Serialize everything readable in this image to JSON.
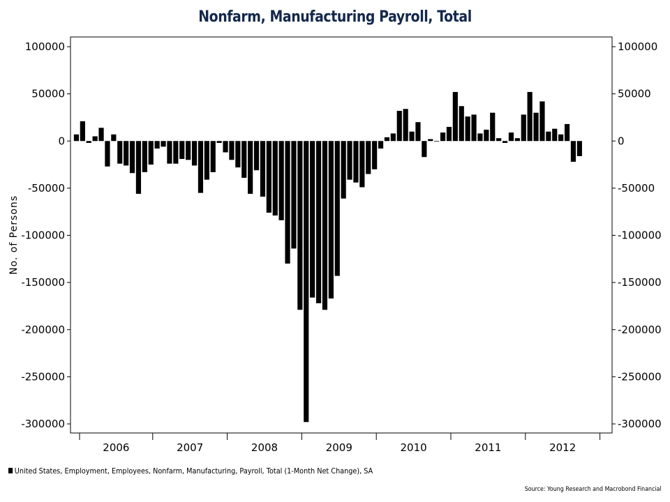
{
  "chart_data": {
    "type": "bar",
    "title": "Nonfarm, Manufacturing Payroll, Total",
    "ylabel": "No. of Persons",
    "xlabel": "",
    "ylim": [
      -310000,
      110000
    ],
    "yticks": [
      100000,
      50000,
      0,
      -50000,
      -100000,
      -150000,
      -200000,
      -250000,
      -300000
    ],
    "ytick_labels": [
      "100000",
      "50000",
      "0",
      "-50000",
      "-100000",
      "-150000",
      "-200000",
      "-250000",
      "-300000"
    ],
    "year_labels": [
      "2006",
      "2007",
      "2008",
      "2009",
      "2010",
      "2011",
      "2012"
    ],
    "x_start": "2006-01",
    "grid": false,
    "bar_color": "#000000",
    "series": [
      {
        "name": "United States, Employment, Employees, Nonfarm, Manufacturing, Payroll, Total (1-Month Net Change), SA",
        "values": [
          7000,
          21000,
          -2000,
          5000,
          14000,
          -27000,
          7000,
          -24000,
          -26000,
          -34000,
          -56000,
          -33000,
          -25000,
          -8000,
          -6000,
          -24000,
          -24000,
          -19000,
          -20000,
          -26000,
          -55000,
          -41000,
          -33000,
          -2000,
          -12000,
          -20000,
          -28000,
          -39000,
          -56000,
          -31000,
          -59000,
          -76000,
          -79000,
          -84000,
          -130000,
          -114000,
          -179000,
          -298000,
          -166000,
          -172000,
          -179000,
          -167000,
          -143000,
          -61000,
          -41000,
          -44000,
          -49000,
          -35000,
          -30000,
          -8000,
          4000,
          8000,
          32000,
          34000,
          10000,
          20000,
          -17000,
          2000,
          0,
          9000,
          15000,
          52000,
          37000,
          26000,
          28000,
          8000,
          12000,
          30000,
          3000,
          -2000,
          9000,
          3000,
          28000,
          52000,
          30000,
          42000,
          10000,
          13000,
          7000,
          18000,
          -22000,
          -16000
        ]
      }
    ]
  },
  "legend": {
    "label": "United States, Employment, Employees, Nonfarm, Manufacturing, Payroll, Total (1-Month Net Change), SA"
  },
  "source": "Source: Young Research and Macrobond Financial"
}
